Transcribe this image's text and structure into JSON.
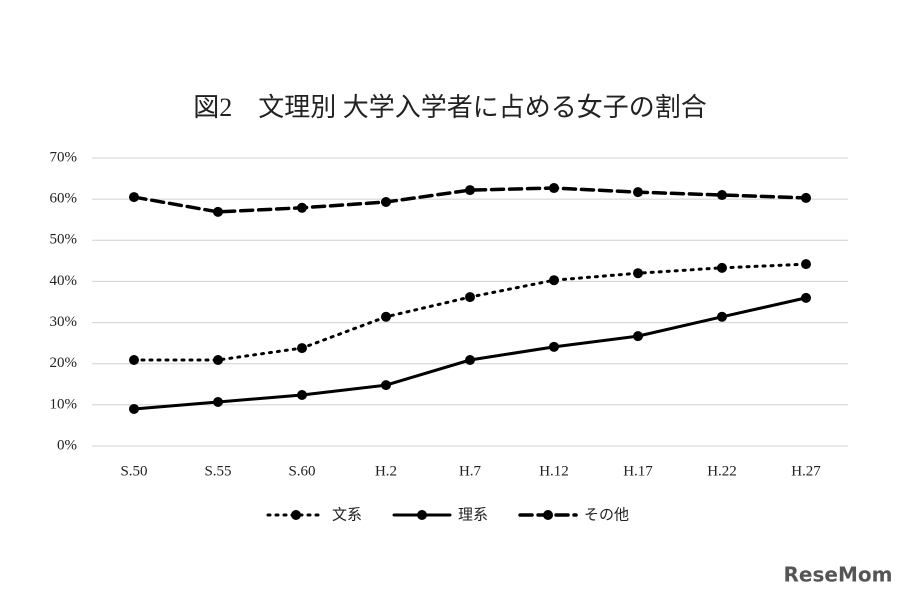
{
  "chart_data": {
    "type": "line",
    "title": "図2　文理別 大学入学者に占める女子の割合",
    "categories": [
      "S.50",
      "S.55",
      "S.60",
      "H.2",
      "H.7",
      "H.12",
      "H.17",
      "H.22",
      "H.27"
    ],
    "series": [
      {
        "name": "文系",
        "color": "#000000",
        "line_style": "dotted",
        "values": [
          20.9,
          20.9,
          23.8,
          31.4,
          36.2,
          40.3,
          42.0,
          43.3,
          44.2
        ]
      },
      {
        "name": "理系",
        "color": "#000000",
        "line_style": "solid",
        "values": [
          9.0,
          10.7,
          12.4,
          14.8,
          20.9,
          24.1,
          26.7,
          31.4,
          36.0
        ]
      },
      {
        "name": "その他",
        "color": "#000000",
        "line_style": "dashed",
        "values": [
          60.5,
          56.9,
          57.9,
          59.3,
          62.2,
          62.7,
          61.7,
          61.0,
          60.3
        ]
      }
    ],
    "ylim": [
      0,
      70
    ],
    "yticks": [
      {
        "value": 0,
        "label": "0%"
      },
      {
        "value": 10,
        "label": "10%"
      },
      {
        "value": 20,
        "label": "20%"
      },
      {
        "value": 30,
        "label": "30%"
      },
      {
        "value": 40,
        "label": "40%"
      },
      {
        "value": 50,
        "label": "50%"
      },
      {
        "value": 60,
        "label": "60%"
      },
      {
        "value": 70,
        "label": "70%"
      }
    ],
    "grid": true,
    "legend": "bottom",
    "watermark": "ReseMom"
  }
}
